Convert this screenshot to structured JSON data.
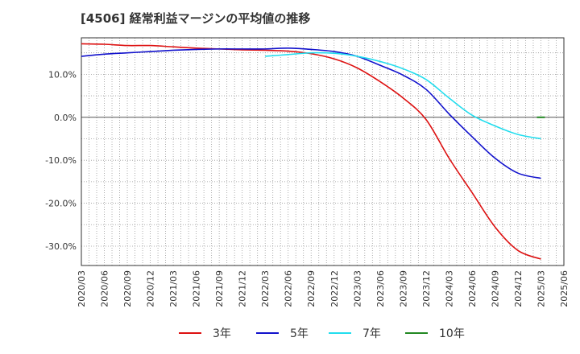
{
  "chart_data": {
    "type": "line",
    "title": "[4506]  経常利益マージンの平均値の推移",
    "xlabel": "",
    "ylabel": "",
    "ylim": [
      -34.5,
      18.5
    ],
    "y_ticks": [
      10,
      0,
      -10,
      -20,
      -30
    ],
    "y_tick_labels": [
      "10.0%",
      "0.0%",
      "-10.0%",
      "-20.0%",
      "-30.0%"
    ],
    "x": [
      "2020/03",
      "2020/06",
      "2020/09",
      "2020/12",
      "2021/03",
      "2021/06",
      "2021/09",
      "2021/12",
      "2022/03",
      "2022/06",
      "2022/09",
      "2022/12",
      "2023/03",
      "2023/06",
      "2023/09",
      "2023/12",
      "2024/03",
      "2024/06",
      "2024/09",
      "2024/12",
      "2025/03",
      "2025/06"
    ],
    "grid": true,
    "legend_position": "bottom",
    "series": [
      {
        "name": "3年",
        "color": "#dd1111",
        "values": [
          17.1,
          17.0,
          16.7,
          16.7,
          16.4,
          16.1,
          15.9,
          15.7,
          15.6,
          15.4,
          14.8,
          13.6,
          11.5,
          8.3,
          4.5,
          -0.5,
          -9.5,
          -17.5,
          -25.5,
          -31.0,
          -33.0,
          null
        ]
      },
      {
        "name": "5年",
        "color": "#1111cc",
        "values": [
          14.2,
          14.7,
          15.0,
          15.3,
          15.6,
          15.8,
          15.9,
          15.9,
          15.9,
          16.1,
          15.8,
          15.3,
          14.2,
          12.1,
          9.8,
          6.5,
          0.8,
          -4.5,
          -9.5,
          -13.0,
          -14.2,
          null
        ]
      },
      {
        "name": "7年",
        "color": "#22ddee",
        "values": [
          null,
          null,
          null,
          null,
          null,
          null,
          null,
          null,
          14.2,
          14.6,
          15.0,
          14.9,
          14.2,
          13.0,
          11.3,
          8.8,
          4.5,
          0.5,
          -2.0,
          -4.0,
          -5.0,
          null
        ]
      },
      {
        "name": "10年",
        "color": "#228822",
        "values": [
          null,
          null,
          null,
          null,
          null,
          null,
          null,
          null,
          null,
          null,
          null,
          null,
          null,
          null,
          null,
          null,
          null,
          null,
          null,
          null,
          0.0,
          null
        ]
      }
    ]
  }
}
